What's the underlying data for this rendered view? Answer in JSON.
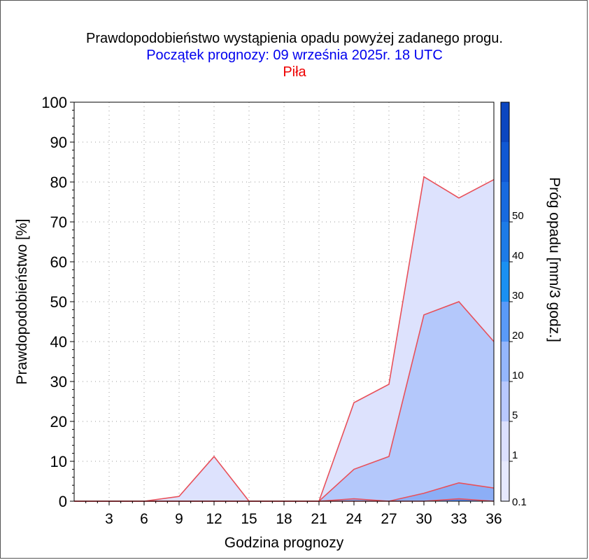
{
  "titles": {
    "main": "Prawdopodobieństwo wystąpienia opadu powyżej zadanego progu.",
    "start": "Początek prognozy: 09 września 2025r. 18 UTC",
    "station": "Piła"
  },
  "chart_data": {
    "type": "area",
    "xlabel": "Godzina prognozy",
    "ylabel": "Prawdopodobieństwo [%]",
    "ylim": [
      0,
      100
    ],
    "xlim": [
      0,
      36
    ],
    "yticks": [
      0,
      10,
      20,
      30,
      40,
      50,
      60,
      70,
      80,
      90,
      100
    ],
    "xticks": [
      3,
      6,
      9,
      12,
      15,
      18,
      21,
      24,
      27,
      30,
      33,
      36
    ],
    "grid": true,
    "x": [
      0,
      3,
      6,
      9,
      12,
      15,
      18,
      21,
      24,
      27,
      30,
      33,
      36
    ],
    "series": [
      {
        "name": "0.1",
        "values": [
          0,
          0,
          0,
          1.2,
          11.2,
          0,
          0,
          0,
          24.7,
          29.3,
          81.3,
          76,
          80.6
        ]
      },
      {
        "name": "1",
        "values": [
          0,
          0,
          0,
          0,
          0,
          0,
          0,
          0,
          8,
          11.2,
          46.7,
          50,
          40
        ]
      },
      {
        "name": "5",
        "values": [
          0,
          0,
          0,
          0,
          0,
          0,
          0,
          0,
          0.6,
          0,
          2,
          4.6,
          3.3
        ]
      },
      {
        "name": "10",
        "values": [
          0,
          0,
          0,
          0,
          0,
          0,
          0,
          0,
          0,
          0,
          0,
          0.6,
          0
        ]
      }
    ],
    "colorbar": {
      "label": "Próg opadu [mm/3 godz.]",
      "ticks": [
        "0.1",
        "1",
        "5",
        "10",
        "20",
        "30",
        "40",
        "50"
      ],
      "colors": [
        "#e6e9fe",
        "#dce0fe",
        "#b8c8fe",
        "#94b6fc",
        "#5a9af8",
        "#1a90f2",
        "#1c7be8",
        "#176ae0",
        "#1058d4",
        "#0b46c0"
      ]
    },
    "colors": {
      "fill": [
        "#dde2fd",
        "#b4c8fb",
        "#8caef6",
        "#5a8af0"
      ],
      "line": "#e8505a"
    }
  }
}
